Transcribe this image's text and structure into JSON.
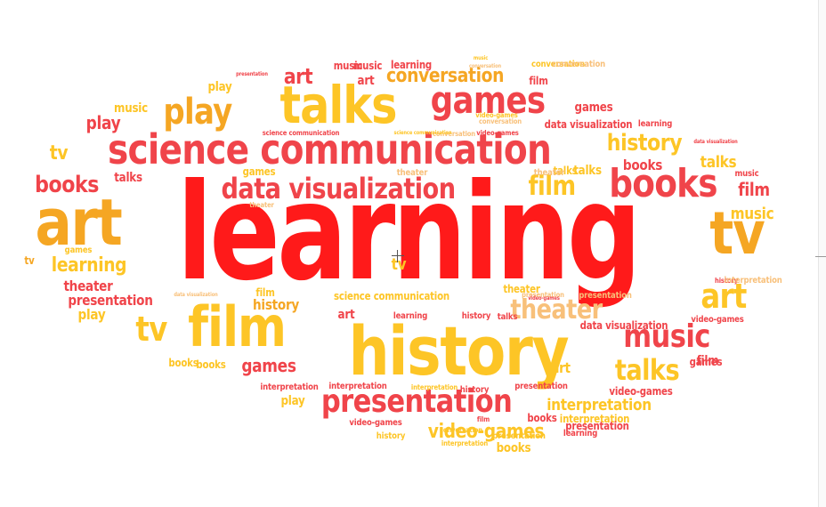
{
  "colors": {
    "red": "#ff1a1a",
    "coral": "#f0444a",
    "orange": "#f5a623",
    "gold": "#fdc526",
    "yellow": "#ffe033",
    "peach": "#f8c07a"
  },
  "words": [
    {
      "t": "learning",
      "c": "red"
    },
    {
      "t": "history",
      "c": "gold"
    },
    {
      "t": "science communication",
      "c": "coral"
    },
    {
      "t": "talks",
      "c": "gold"
    },
    {
      "t": "games",
      "c": "coral"
    },
    {
      "t": "data visualization",
      "c": "coral"
    },
    {
      "t": "art",
      "c": "orange"
    },
    {
      "t": "tv",
      "c": "orange"
    },
    {
      "t": "film",
      "c": "gold"
    },
    {
      "t": "books",
      "c": "coral"
    },
    {
      "t": "presentation",
      "c": "coral"
    },
    {
      "t": "play",
      "c": "orange"
    },
    {
      "t": "music",
      "c": "coral"
    },
    {
      "t": "theater",
      "c": "peach"
    },
    {
      "t": "talks",
      "c": "gold"
    },
    {
      "t": "video-games",
      "c": "gold"
    },
    {
      "t": "conversation",
      "c": "orange"
    },
    {
      "t": "art",
      "c": "coral"
    },
    {
      "t": "art",
      "c": "gold"
    },
    {
      "t": "tv",
      "c": "gold"
    },
    {
      "t": "film",
      "c": "gold"
    },
    {
      "t": "history",
      "c": "gold"
    },
    {
      "t": "books",
      "c": "coral"
    },
    {
      "t": "interpretation",
      "c": "gold"
    },
    {
      "t": "games",
      "c": "coral"
    },
    {
      "t": "play",
      "c": "coral"
    },
    {
      "t": "music",
      "c": "gold"
    },
    {
      "t": "play",
      "c": "gold"
    },
    {
      "t": "music",
      "c": "coral"
    },
    {
      "t": "tv",
      "c": "gold"
    },
    {
      "t": "learning",
      "c": "gold"
    },
    {
      "t": "theater",
      "c": "coral"
    },
    {
      "t": "presentation",
      "c": "coral"
    },
    {
      "t": "play",
      "c": "gold"
    },
    {
      "t": "history",
      "c": "orange"
    },
    {
      "t": "learning",
      "c": "coral"
    },
    {
      "t": "film",
      "c": "gold"
    },
    {
      "t": "art",
      "c": "coral"
    },
    {
      "t": "books",
      "c": "coral"
    },
    {
      "t": "film",
      "c": "coral"
    },
    {
      "t": "talks",
      "c": "gold"
    },
    {
      "t": "music",
      "c": "gold"
    },
    {
      "t": "games",
      "c": "coral"
    },
    {
      "t": "talks",
      "c": "coral"
    },
    {
      "t": "conversation",
      "c": "gold"
    },
    {
      "t": "art",
      "c": "coral"
    },
    {
      "t": "music",
      "c": "coral"
    },
    {
      "t": "film",
      "c": "coral"
    },
    {
      "t": "presentation",
      "c": "coral"
    },
    {
      "t": "interpretation",
      "c": "coral"
    },
    {
      "t": "video-games",
      "c": "coral"
    },
    {
      "t": "history",
      "c": "gold"
    },
    {
      "t": "books",
      "c": "gold"
    },
    {
      "t": "talks",
      "c": "gold"
    },
    {
      "t": "games",
      "c": "gold"
    },
    {
      "t": "science communication",
      "c": "gold"
    },
    {
      "t": "theater",
      "c": "gold"
    },
    {
      "t": "data visualization",
      "c": "peach"
    },
    {
      "t": "history",
      "c": "coral"
    },
    {
      "t": "play",
      "c": "gold"
    },
    {
      "t": "tv",
      "c": "gold"
    },
    {
      "t": "books",
      "c": "gold"
    },
    {
      "t": "film",
      "c": "coral"
    },
    {
      "t": "talks",
      "c": "gold"
    },
    {
      "t": "learning",
      "c": "coral"
    },
    {
      "t": "music",
      "c": "coral"
    },
    {
      "t": "tv",
      "c": "orange"
    },
    {
      "t": "art",
      "c": "gold"
    },
    {
      "t": "presentation",
      "c": "peach"
    },
    {
      "t": "interpretation",
      "c": "gold"
    },
    {
      "t": "interpretation",
      "c": "coral"
    },
    {
      "t": "presentation",
      "c": "coral"
    },
    {
      "t": "video-games",
      "c": "coral"
    },
    {
      "t": "data visualization",
      "c": "coral"
    },
    {
      "t": "video-games",
      "c": "coral"
    },
    {
      "t": "books",
      "c": "coral"
    },
    {
      "t": "presentation",
      "c": "coral"
    },
    {
      "t": "learning",
      "c": "coral"
    },
    {
      "t": "history",
      "c": "coral"
    },
    {
      "t": "interpretation",
      "c": "gold"
    },
    {
      "t": "books",
      "c": "gold"
    },
    {
      "t": "conversation",
      "c": "peach"
    },
    {
      "t": "theater",
      "c": "peach"
    },
    {
      "t": "theater",
      "c": "peach"
    },
    {
      "t": "games",
      "c": "gold"
    },
    {
      "t": "presentation",
      "c": "peach"
    },
    {
      "t": "conversation",
      "c": "peach"
    },
    {
      "t": "data visualization",
      "c": "coral"
    },
    {
      "t": "learning",
      "c": "coral"
    },
    {
      "t": "video-games",
      "c": "coral"
    },
    {
      "t": "conversation",
      "c": "peach"
    },
    {
      "t": "science communication",
      "c": "coral"
    },
    {
      "t": "theater",
      "c": "peach"
    },
    {
      "t": "data visualization",
      "c": "coral"
    },
    {
      "t": "science communication",
      "c": "gold"
    },
    {
      "t": "video-games",
      "c": "coral"
    },
    {
      "t": "history",
      "c": "coral"
    },
    {
      "t": "talks",
      "c": "coral"
    },
    {
      "t": "interpretation",
      "c": "peach"
    },
    {
      "t": "interpretation",
      "c": "gold"
    },
    {
      "t": "film",
      "c": "coral"
    },
    {
      "t": "games",
      "c": "coral"
    },
    {
      "t": "conversation",
      "c": "gold"
    },
    {
      "t": "presentation",
      "c": "gold"
    },
    {
      "t": "conversation",
      "c": "peach"
    },
    {
      "t": "video-games",
      "c": "gold"
    },
    {
      "t": "music",
      "c": "gold"
    }
  ]
}
